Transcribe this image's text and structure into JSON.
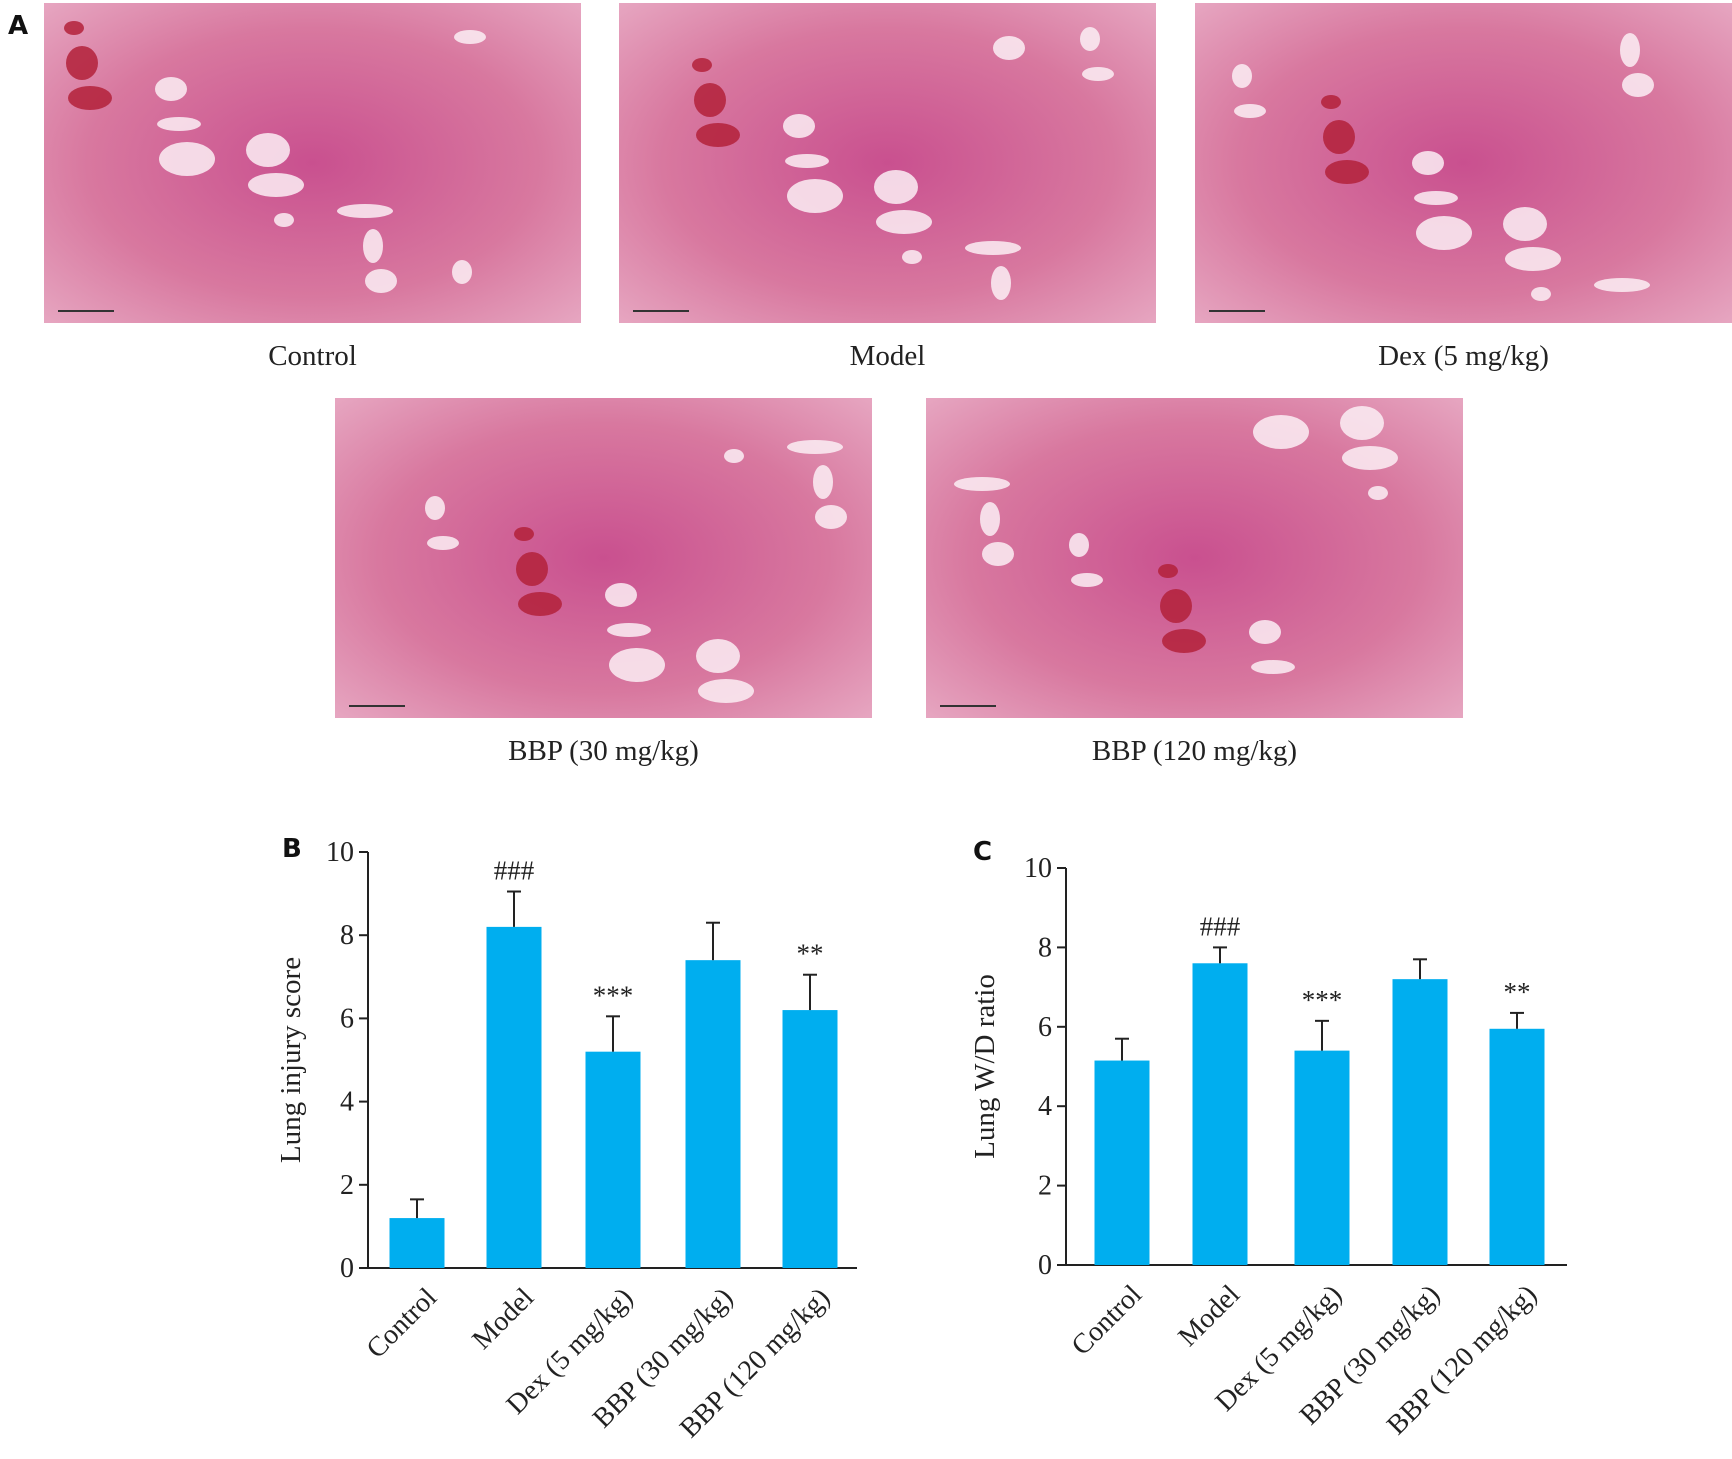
{
  "panel_a": {
    "label": "A",
    "images": [
      {
        "caption": "Control"
      },
      {
        "caption": "Model"
      },
      {
        "caption": "Dex (5 mg/kg)"
      },
      {
        "caption": "BBP (30 mg/kg)"
      },
      {
        "caption": "BBP (120 mg/kg)"
      }
    ]
  },
  "chart_data": [
    {
      "type": "bar",
      "panel_label": "B",
      "y_label": "Lung injury score",
      "categories": [
        "Control",
        "Model",
        "Dex (5 mg/kg)",
        "BBP (30 mg/kg)",
        "BBP (120 mg/kg)"
      ],
      "series": [
        {
          "color": "#00aeef",
          "values": [
            1.2,
            8.2,
            5.2,
            7.4,
            6.2
          ],
          "errors": [
            0.45,
            0.85,
            0.85,
            0.9,
            0.85
          ]
        }
      ],
      "annotations": [
        null,
        "###",
        "***",
        null,
        "**"
      ],
      "ylim": [
        0,
        10
      ],
      "yticks": [
        0,
        2,
        4,
        6,
        8,
        10
      ]
    },
    {
      "type": "bar",
      "panel_label": "C",
      "y_label": "Lung W/D ratio",
      "categories": [
        "Control",
        "Model",
        "Dex (5 mg/kg)",
        "BBP (30 mg/kg)",
        "BBP (120 mg/kg)"
      ],
      "series": [
        {
          "color": "#00aeef",
          "values": [
            5.15,
            7.6,
            5.4,
            7.2,
            5.95
          ],
          "errors": [
            0.55,
            0.4,
            0.75,
            0.5,
            0.4
          ]
        }
      ],
      "annotations": [
        null,
        "###",
        "***",
        null,
        "**"
      ],
      "ylim": [
        0,
        10
      ],
      "yticks": [
        0,
        2,
        4,
        6,
        8,
        10
      ]
    }
  ]
}
